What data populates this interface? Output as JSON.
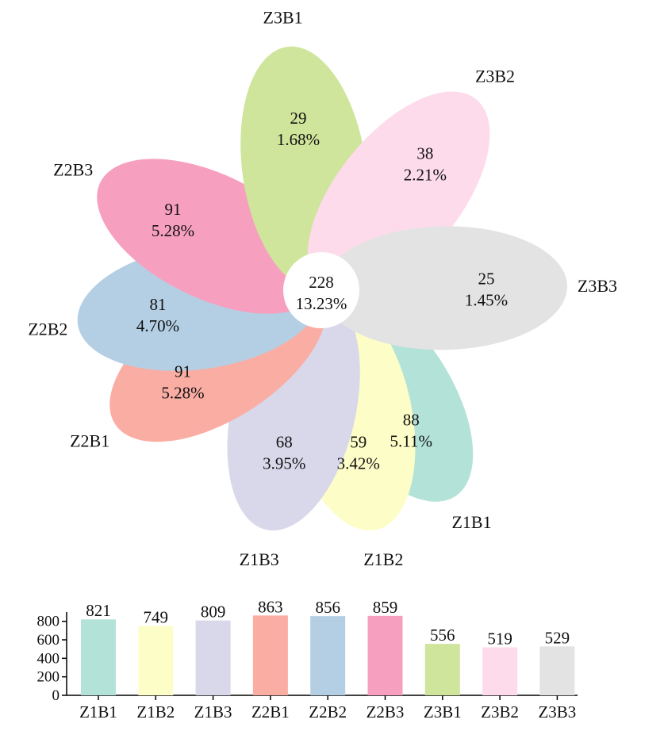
{
  "chart_data": [
    {
      "type": "flower",
      "center": {
        "value": "228",
        "percent": "13.23%"
      },
      "petals": [
        {
          "name": "Z1B1",
          "value": "88",
          "percent": "5.11%",
          "color": "#b3e3d8"
        },
        {
          "name": "Z1B2",
          "value": "59",
          "percent": "3.42%",
          "color": "#fdfdc8"
        },
        {
          "name": "Z1B3",
          "value": "68",
          "percent": "3.95%",
          "color": "#d8d8ea"
        },
        {
          "name": "Z2B1",
          "value": "91",
          "percent": "5.28%",
          "color": "#faada3"
        },
        {
          "name": "Z2B2",
          "value": "81",
          "percent": "4.70%",
          "color": "#b4cfe4"
        },
        {
          "name": "Z2B3",
          "value": "91",
          "percent": "5.28%",
          "color": "#f79fbf"
        },
        {
          "name": "Z3B1",
          "value": "29",
          "percent": "1.68%",
          "color": "#cfe59b"
        },
        {
          "name": "Z3B2",
          "value": "38",
          "percent": "2.21%",
          "color": "#fddbea"
        },
        {
          "name": "Z3B3",
          "value": "25",
          "percent": "1.45%",
          "color": "#e3e3e3"
        }
      ]
    },
    {
      "type": "bar",
      "categories": [
        "Z1B1",
        "Z1B2",
        "Z1B3",
        "Z2B1",
        "Z2B2",
        "Z2B3",
        "Z3B1",
        "Z3B2",
        "Z3B3"
      ],
      "values": [
        821,
        749,
        809,
        863,
        856,
        859,
        556,
        519,
        529
      ],
      "value_labels": [
        "821",
        "749",
        "809",
        "863",
        "856",
        "859",
        "556",
        "519",
        "529"
      ],
      "colors": [
        "#b3e3d8",
        "#fdfdc8",
        "#d8d8ea",
        "#faada3",
        "#b4cfe4",
        "#f79fbf",
        "#cfe59b",
        "#fddbea",
        "#e3e3e3"
      ],
      "yticks": [
        "0",
        "200",
        "400",
        "600",
        "800"
      ],
      "ylim": [
        0,
        900
      ],
      "grid": false
    }
  ]
}
